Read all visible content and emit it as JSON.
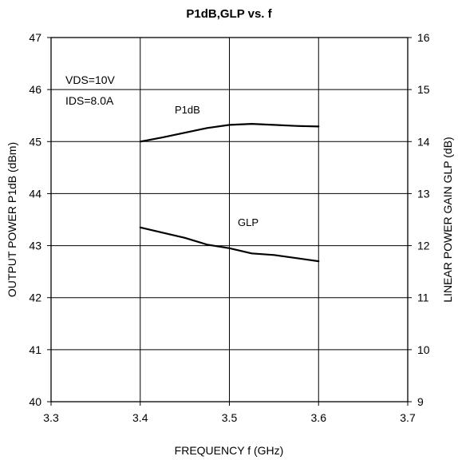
{
  "chart_data": {
    "type": "line",
    "title": "P1dB,GLP vs. f",
    "xlabel": "FREQUENCY f (GHz)",
    "ylabel_left": "OUTPUT POWER P1dB (dBm)",
    "ylabel_right": "LINEAR POWER GAIN GLP (dB)",
    "xlim": [
      3.3,
      3.7
    ],
    "ylim_left": [
      40,
      47
    ],
    "ylim_right": [
      9,
      16
    ],
    "x_ticks": [
      "3.3",
      "3.4",
      "3.5",
      "3.6",
      "3.7"
    ],
    "y_ticks_left": [
      "40",
      "41",
      "42",
      "43",
      "44",
      "45",
      "46",
      "47"
    ],
    "y_ticks_right": [
      "9",
      "10",
      "11",
      "12",
      "13",
      "14",
      "15",
      "16"
    ],
    "grid": true,
    "series": [
      {
        "name": "P1dB",
        "axis": "left",
        "x": [
          3.4,
          3.425,
          3.45,
          3.475,
          3.5,
          3.525,
          3.55,
          3.575,
          3.6
        ],
        "y": [
          45.0,
          45.08,
          45.17,
          45.26,
          45.32,
          45.34,
          45.32,
          45.3,
          45.29
        ]
      },
      {
        "name": "GLP",
        "axis": "right",
        "x": [
          3.4,
          3.425,
          3.45,
          3.475,
          3.5,
          3.525,
          3.55,
          3.575,
          3.6
        ],
        "y": [
          12.35,
          12.25,
          12.15,
          12.02,
          11.95,
          11.85,
          11.82,
          11.76,
          11.7
        ]
      }
    ],
    "annotations": {
      "conditions_1": "VDS=10V",
      "conditions_2": "IDS=8.0A",
      "p1db_label": "P1dB",
      "glp_label": "GLP"
    }
  }
}
